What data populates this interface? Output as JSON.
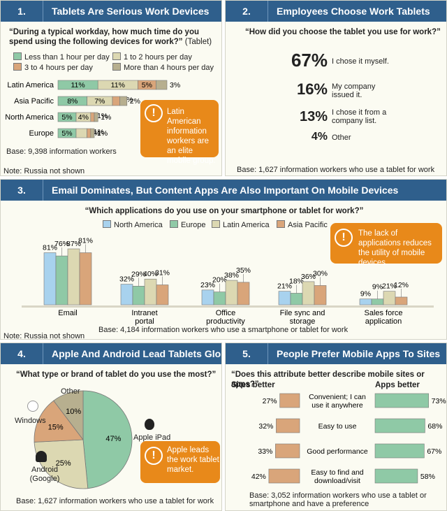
{
  "colors": {
    "na": "#a8d2ee",
    "eu": "#8fc9a6",
    "la": "#dcd8b2",
    "ap": "#d9a57a",
    "header": "#2f5f8c",
    "callout": "#e8891a"
  },
  "panel1": {
    "number": "1.",
    "title": "Tablets Are Serious Work Devices",
    "question": "“During a typical workday, how much time do you spend using the following devices for work?”",
    "question_suffix": "(Tablet)",
    "callout": "Latin American information workers are an elite mobile group.",
    "base": "Base: 9,398 information workers",
    "note": "Note: Russia not shown"
  },
  "panel2": {
    "number": "2.",
    "title": "Employees Choose Work Tablets",
    "question": "“How did you choose the tablet you use for work?”",
    "items": [
      {
        "pct": "67%",
        "label": "I chose it myself."
      },
      {
        "pct": "16%",
        "label": "My company issued it."
      },
      {
        "pct": "13%",
        "label": "I chose it from a company list."
      },
      {
        "pct": "4%",
        "label": "Other"
      }
    ],
    "base": "Base: 1,627 information workers who use a tablet for work"
  },
  "panel3": {
    "number": "3.",
    "title": "Email Dominates, But Content Apps Are Also Important On Mobile Devices",
    "question": "“Which applications do you use on your smartphone or tablet for work?”",
    "callout": "The lack of applications reduces the utility of mobile devices.",
    "base": "Base: 4,184 information workers who use a smartphone or tablet for work",
    "note": "Note: Russia not shown"
  },
  "panel4": {
    "number": "4.",
    "title": "Apple And Android Lead Tablets Globally",
    "question": "“What type or brand of tablet do you use the most?”",
    "callout": "Apple leads the work tablet market.",
    "base": "Base: 1,627 information workers who use a tablet for work"
  },
  "panel5": {
    "number": "5.",
    "title": "People Prefer Mobile Apps To Sites",
    "question": "“Does this attribute better describe mobile sites or apps?”",
    "sites_header": "Sites better",
    "apps_header": "Apps better",
    "base": "Base: 3,052 information workers who use a tablet or smartphone and have a preference"
  },
  "chart_data": [
    {
      "type": "bar",
      "orientation": "horizontal-stacked",
      "categories": [
        "Latin America",
        "Asia Pacific",
        "North America",
        "Europe"
      ],
      "series": [
        {
          "name": "Less than 1 hour per day",
          "values": [
            11,
            8,
            5,
            5
          ]
        },
        {
          "name": "1 to 2 hours per day",
          "values": [
            11,
            7,
            4,
            3
          ]
        },
        {
          "name": "3 to 4 hours per day",
          "values": [
            5,
            2,
            1,
            1
          ]
        },
        {
          "name": "More than 4 hours per day",
          "values": [
            3,
            2,
            1,
            1
          ]
        }
      ],
      "series_colors": [
        "#8fc9a6",
        "#dcd8b2",
        "#d9a57a",
        "#b7af8f"
      ],
      "unit": "%"
    },
    {
      "type": "bar",
      "categories": [
        "Email",
        "Intranet portal",
        "Office productivity",
        "File sync and storage",
        "Sales force application"
      ],
      "series": [
        {
          "name": "North America",
          "values": [
            81,
            32,
            23,
            21,
            9
          ]
        },
        {
          "name": "Europe",
          "values": [
            76,
            29,
            20,
            18,
            9
          ]
        },
        {
          "name": "Latin America",
          "values": [
            87,
            40,
            38,
            36,
            21
          ]
        },
        {
          "name": "Asia Pacific",
          "values": [
            81,
            31,
            35,
            30,
            12
          ]
        }
      ],
      "legend": "top",
      "unit": "%"
    },
    {
      "type": "pie",
      "labels": [
        "Apple iPad",
        "Android (Google)",
        "Windows",
        "Other"
      ],
      "values": [
        47,
        25,
        15,
        10
      ],
      "colors": [
        "#8fc9a6",
        "#dcd8b2",
        "#d9a57a",
        "#b7af8f"
      ],
      "unit": "%"
    },
    {
      "type": "bar",
      "orientation": "horizontal-diverging",
      "categories": [
        "Convenient; I can use it anywhere",
        "Easy to use",
        "Good performance",
        "Easy to find and download/visit"
      ],
      "series": [
        {
          "name": "Sites better",
          "values": [
            27,
            32,
            33,
            42
          ]
        },
        {
          "name": "Apps better",
          "values": [
            73,
            68,
            67,
            58
          ]
        }
      ],
      "unit": "%"
    }
  ]
}
